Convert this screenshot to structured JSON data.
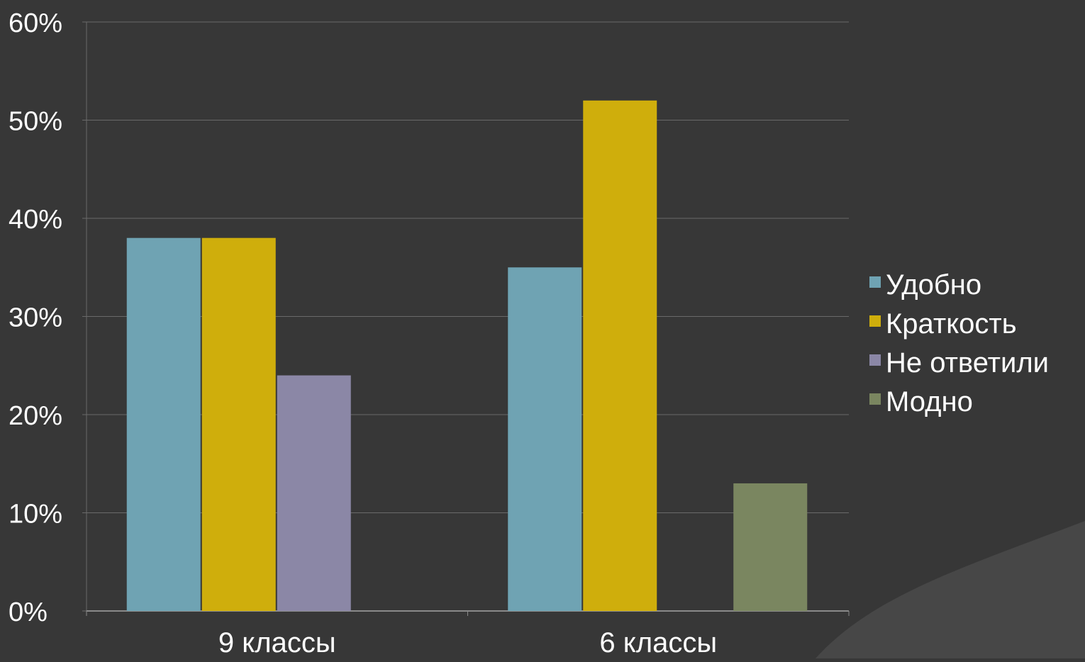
{
  "chart_data": {
    "type": "bar",
    "title": "",
    "xlabel": "",
    "ylabel": "",
    "categories": [
      "9 классы",
      "6 классы"
    ],
    "y_ticks": [
      "0%",
      "10%",
      "20%",
      "30%",
      "40%",
      "50%",
      "60%"
    ],
    "ylim": [
      0,
      60
    ],
    "grid": true,
    "legend_position": "right",
    "series": [
      {
        "name": "Удобно",
        "color": "#6fa3b3",
        "values": [
          38,
          35
        ]
      },
      {
        "name": "Краткость",
        "color": "#cfae0c",
        "values": [
          38,
          52
        ]
      },
      {
        "name": "Не ответили",
        "color": "#8b87a6",
        "values": [
          24,
          0
        ]
      },
      {
        "name": "Модно",
        "color": "#7a8660",
        "values": [
          0,
          13
        ]
      }
    ]
  },
  "colors": {
    "background": "#373737",
    "corner_shape": "#474747",
    "gridline": "#6a6a6a",
    "text": "#ffffff"
  }
}
